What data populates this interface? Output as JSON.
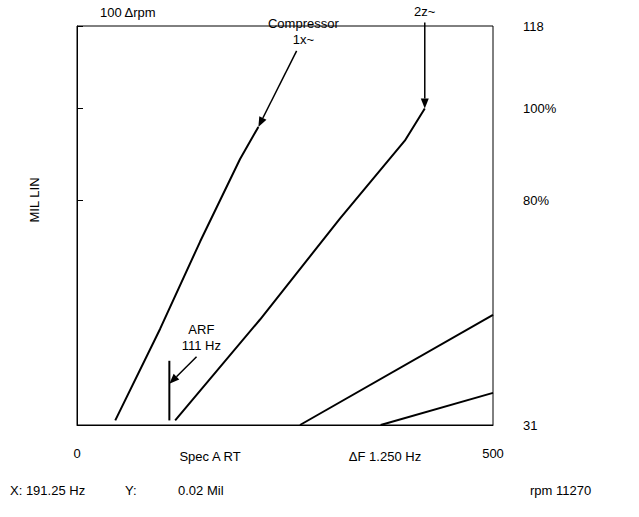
{
  "chart_data": {
    "type": "line",
    "title": "100 Δrpm",
    "ylabel": "MIL LIN",
    "xlim": [
      0,
      500
    ],
    "xticks": [
      0,
      500
    ],
    "ylim": [
      31,
      118
    ],
    "yticks": [
      31,
      {
        "value": 80,
        "label": "80%"
      },
      {
        "value": 100,
        "label": "100%"
      },
      118
    ],
    "grid": false,
    "color": "#000000",
    "series": [
      {
        "x": [
          46,
          100,
          148,
          196,
          218
        ],
        "values": [
          32,
          52,
          71,
          89,
          96
        ]
      },
      {
        "x": [
          118,
          220,
          316,
          394,
          418
        ],
        "values": [
          32,
          54,
          76,
          93,
          100
        ]
      },
      {
        "x": [
          111,
          111
        ],
        "values": [
          32,
          45
        ]
      },
      {
        "x": [
          268,
          500
        ],
        "values": [
          31,
          55
        ]
      },
      {
        "x": [
          365,
          500
        ],
        "values": [
          31,
          38
        ]
      }
    ],
    "annotations": [
      {
        "text": "Compressor\n1x~",
        "x": 218,
        "y": 96
      },
      {
        "text": "2z~",
        "x": 418,
        "y": 100
      },
      {
        "text": "ARF\n111 Hz",
        "x": 111,
        "y": 40
      }
    ],
    "footer": [
      "Spec A RT",
      "ΔF 1.250 Hz"
    ],
    "status_line": [
      "X: 191.25 Hz",
      "Y:",
      "0.02 Mil",
      "rpm 11270"
    ]
  }
}
